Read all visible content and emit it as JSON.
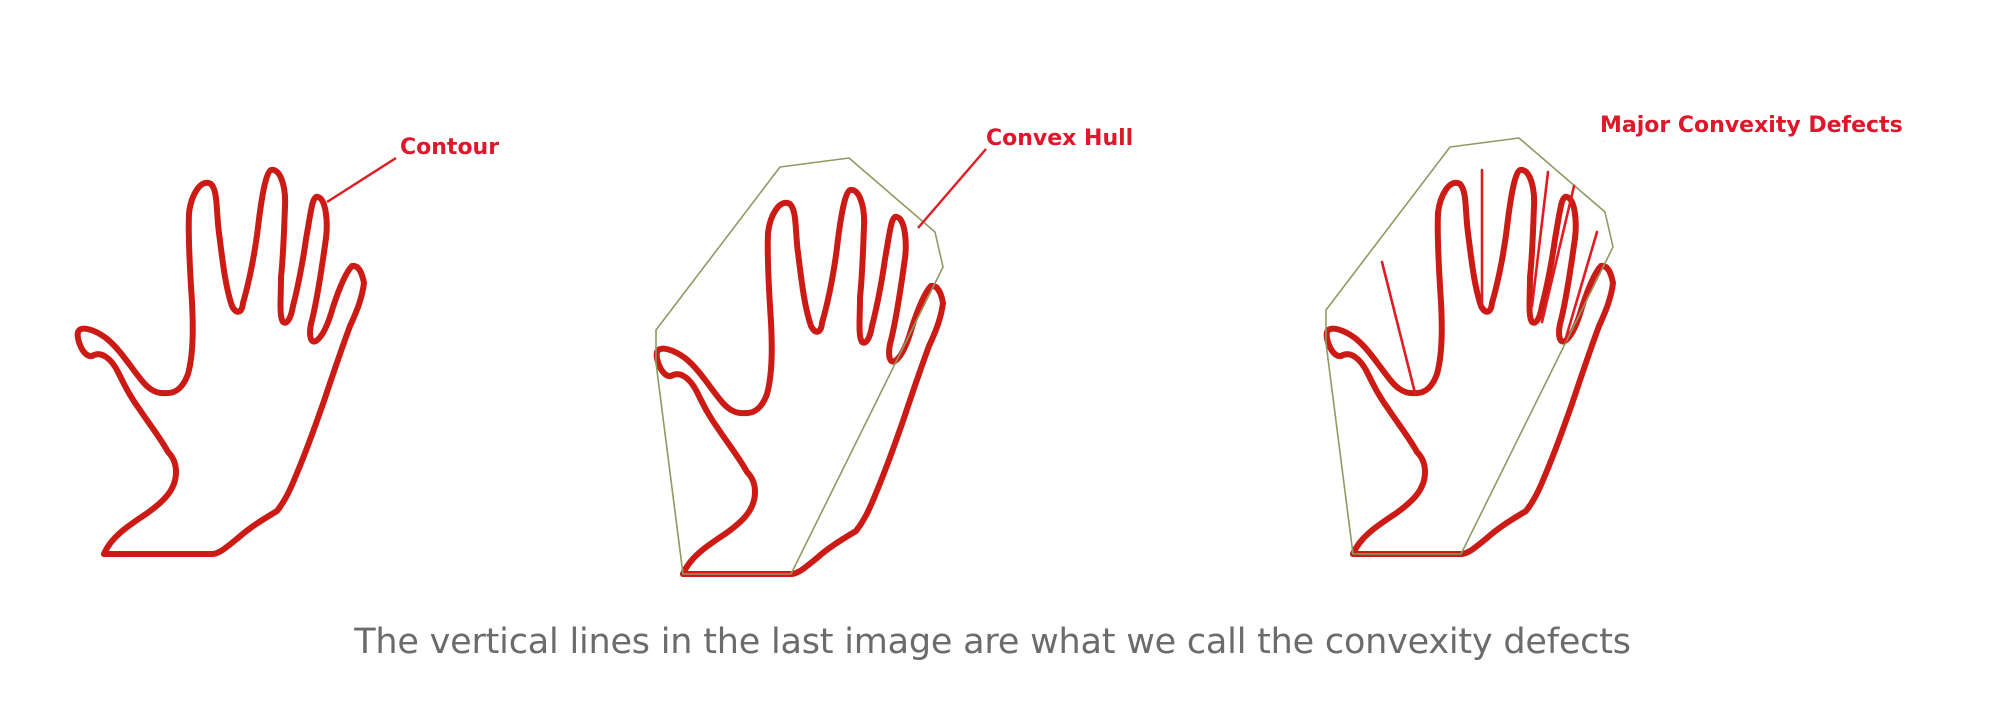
{
  "panels": [
    {
      "id": "contour",
      "label": "Contour"
    },
    {
      "id": "convex-hull",
      "label": "Convex Hull"
    },
    {
      "id": "convexity-defects",
      "label": "Major Convexity Defects"
    }
  ],
  "caption": "The vertical lines in the last image are what we call the convexity defects",
  "colors": {
    "contour": "#cc1a14",
    "hull": "#8f9a63",
    "label": "#e0162a",
    "caption": "#6b6b6b"
  }
}
